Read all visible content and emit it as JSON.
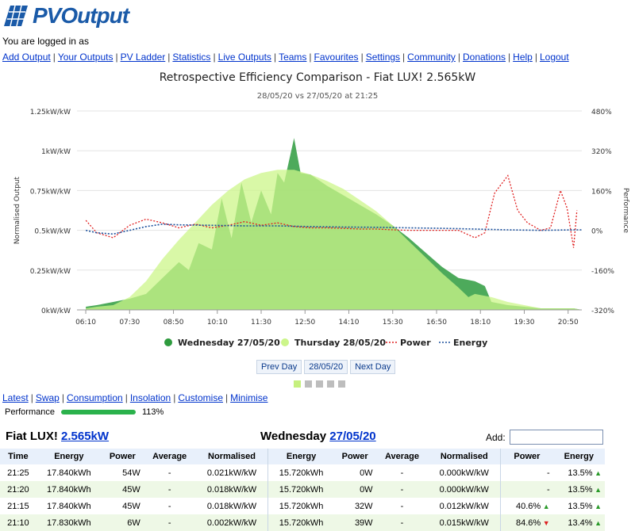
{
  "header": {
    "logo_text": "PVOutput",
    "login_text": "You are logged in as"
  },
  "nav": {
    "items": [
      "Add Output",
      "Your Outputs",
      "PV Ladder",
      "Statistics",
      "Live Outputs",
      "Teams",
      "Favourites",
      "Settings",
      "Community",
      "Donations",
      "Help",
      "Logout"
    ]
  },
  "chart_data": {
    "type": "area",
    "title": "Retrospective Efficiency Comparison - Fiat LUX! 2.565kW",
    "subtitle": "28/05/20 vs 27/05/20 at 21:25",
    "ylabel": "Normalised Output",
    "y2label": "Performance",
    "ylim": [
      0,
      1.25
    ],
    "y2lim": [
      -320,
      480
    ],
    "yticks": [
      "0kW/kW",
      "0.25kW/kW",
      "0.5kW/kW",
      "0.75kW/kW",
      "1kW/kW",
      "1.25kW/kW"
    ],
    "y2ticks": [
      "-320%",
      "-160%",
      "0%",
      "160%",
      "320%",
      "480%"
    ],
    "xticks": [
      "06:10",
      "07:30",
      "08:50",
      "10:10",
      "11:30",
      "12:50",
      "14:10",
      "15:30",
      "16:50",
      "18:10",
      "19:30",
      "20:50"
    ],
    "x_range_hours": [
      5.9,
      21.25
    ],
    "legend_position": "bottom",
    "legend": [
      "Wednesday 27/05/20",
      "Thursday 28/05/20",
      "Power",
      "Energy"
    ],
    "series": [
      {
        "name": "Thursday 28/05/20",
        "color": "#ccf58a",
        "x": [
          6.17,
          6.5,
          7.0,
          7.5,
          8.0,
          8.5,
          9.0,
          9.5,
          10.0,
          10.5,
          11.0,
          11.5,
          12.0,
          12.5,
          13.0,
          13.5,
          14.0,
          14.5,
          15.0,
          15.5,
          16.0,
          16.5,
          17.0,
          17.5,
          17.8,
          18.0,
          18.5,
          19.0,
          19.5,
          20.0,
          20.5,
          21.0,
          21.25
        ],
        "values": [
          0.01,
          0.02,
          0.03,
          0.08,
          0.18,
          0.32,
          0.44,
          0.55,
          0.66,
          0.75,
          0.82,
          0.86,
          0.88,
          0.88,
          0.85,
          0.81,
          0.76,
          0.69,
          0.62,
          0.53,
          0.43,
          0.33,
          0.23,
          0.14,
          0.08,
          0.1,
          0.08,
          0.05,
          0.03,
          0.01,
          0.01,
          0.01,
          0.0
        ]
      },
      {
        "name": "Wednesday 27/05/20",
        "color": "#2e9b3e",
        "x": [
          6.17,
          6.5,
          7.0,
          7.5,
          8.0,
          8.5,
          9.0,
          9.3,
          9.6,
          10.0,
          10.3,
          10.6,
          10.9,
          11.2,
          11.5,
          11.8,
          12.0,
          12.2,
          12.5,
          12.7,
          13.0,
          13.5,
          14.0,
          14.5,
          15.0,
          15.5,
          16.0,
          16.5,
          17.0,
          17.5,
          18.0,
          18.3,
          18.5,
          19.0,
          19.5,
          20.0,
          20.5,
          21.0,
          21.25
        ],
        "values": [
          0.02,
          0.03,
          0.05,
          0.07,
          0.1,
          0.2,
          0.3,
          0.25,
          0.42,
          0.38,
          0.7,
          0.45,
          0.8,
          0.55,
          0.75,
          0.6,
          0.86,
          0.8,
          1.08,
          0.86,
          0.85,
          0.78,
          0.72,
          0.66,
          0.6,
          0.53,
          0.45,
          0.36,
          0.27,
          0.2,
          0.18,
          0.15,
          0.05,
          0.03,
          0.02,
          0.01,
          0.01,
          0.01,
          0.0
        ]
      },
      {
        "name": "Power",
        "color": "#e02020",
        "axis": "y2",
        "x": [
          6.17,
          6.5,
          7.0,
          7.5,
          8.0,
          8.5,
          9.0,
          9.5,
          10.0,
          10.5,
          11.0,
          11.5,
          12.0,
          12.5,
          13.0,
          13.5,
          14.0,
          14.5,
          15.0,
          15.5,
          16.0,
          16.5,
          17.0,
          17.5,
          18.0,
          18.3,
          18.6,
          19.0,
          19.3,
          19.6,
          20.0,
          20.3,
          20.6,
          20.8,
          21.0,
          21.1
        ],
        "values": [
          40,
          -10,
          -30,
          20,
          45,
          30,
          10,
          25,
          10,
          20,
          35,
          20,
          30,
          15,
          10,
          10,
          8,
          5,
          5,
          2,
          0,
          0,
          0,
          0,
          -30,
          -10,
          150,
          220,
          80,
          30,
          0,
          10,
          160,
          90,
          -70,
          80
        ]
      },
      {
        "name": "Energy",
        "color": "#1a4f9c",
        "axis": "y2",
        "x": [
          6.17,
          6.5,
          7.0,
          7.5,
          8.0,
          8.5,
          9.0,
          10.0,
          11.0,
          12.0,
          13.0,
          14.0,
          15.0,
          16.0,
          17.0,
          18.0,
          19.0,
          20.0,
          21.0,
          21.25
        ],
        "values": [
          0,
          -10,
          -15,
          0,
          15,
          25,
          22,
          20,
          18,
          18,
          15,
          13,
          12,
          10,
          8,
          5,
          2,
          0,
          2,
          2
        ]
      }
    ]
  },
  "pager": {
    "prev": "Prev Day",
    "current": "28/05/20",
    "next": "Next Day"
  },
  "links2": [
    "Latest",
    "Swap",
    "Consumption",
    "Insolation",
    "Customise",
    "Minimise"
  ],
  "performance": {
    "label": "Performance",
    "value": "113%",
    "fill": 1.0
  },
  "system": {
    "name": "Fiat LUX!",
    "size": "2.565kW"
  },
  "compare": {
    "day": "Wednesday",
    "date": "27/05/20"
  },
  "add_label": "Add:",
  "table": {
    "headers": [
      "Time",
      "Energy",
      "Power",
      "Average",
      "Normalised",
      "Energy",
      "Power",
      "Average",
      "Normalised",
      "Power",
      "Energy"
    ],
    "rows": [
      {
        "time": "21:25",
        "e1": "17.840kWh",
        "p1": "54W",
        "a1": "-",
        "n1": "0.021kW/kW",
        "e2": "15.720kWh",
        "p2": "0W",
        "a2": "-",
        "n2": "0.000kW/kW",
        "pp": "-",
        "pp_dir": "",
        "ee": "13.5%",
        "ee_dir": "up"
      },
      {
        "time": "21:20",
        "e1": "17.840kWh",
        "p1": "45W",
        "a1": "-",
        "n1": "0.018kW/kW",
        "e2": "15.720kWh",
        "p2": "0W",
        "a2": "-",
        "n2": "0.000kW/kW",
        "pp": "-",
        "pp_dir": "",
        "ee": "13.5%",
        "ee_dir": "up"
      },
      {
        "time": "21:15",
        "e1": "17.840kWh",
        "p1": "45W",
        "a1": "-",
        "n1": "0.018kW/kW",
        "e2": "15.720kWh",
        "p2": "32W",
        "a2": "-",
        "n2": "0.012kW/kW",
        "pp": "40.6%",
        "pp_dir": "up",
        "ee": "13.5%",
        "ee_dir": "up"
      },
      {
        "time": "21:10",
        "e1": "17.830kWh",
        "p1": "6W",
        "a1": "-",
        "n1": "0.002kW/kW",
        "e2": "15.720kWh",
        "p2": "39W",
        "a2": "-",
        "n2": "0.015kW/kW",
        "pp": "84.6%",
        "pp_dir": "down",
        "ee": "13.4%",
        "ee_dir": "up"
      }
    ]
  }
}
